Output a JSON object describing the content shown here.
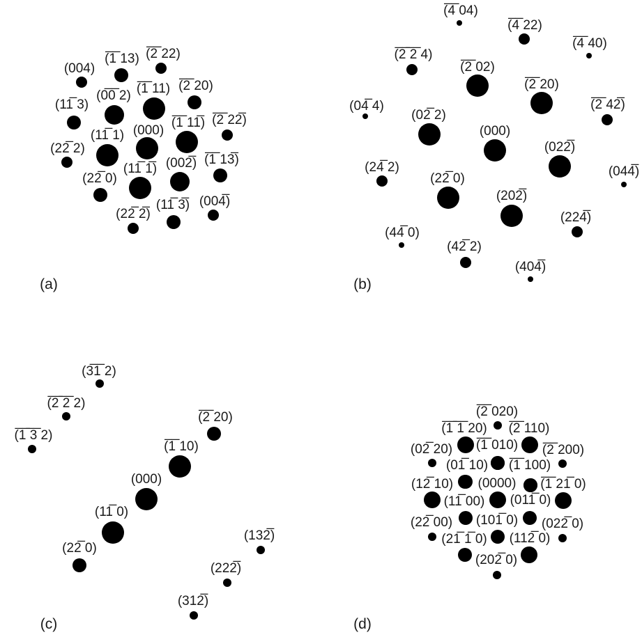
{
  "panels": [
    {
      "id": "a",
      "label": "(a)",
      "spots": [
        {
          "name": "004",
          "text": "(004)"
        },
        {
          "name": "-113",
          "text": "(̅1̅ 13)"
        },
        {
          "name": "-222",
          "text": "(̅2̅ 22)"
        },
        {
          "name": "-002",
          "text": "(0̅0̅ 2)"
        },
        {
          "name": "-111",
          "text": "(̅1̅ 11)"
        },
        {
          "name": "-220",
          "text": "(̅2̅ 20)"
        },
        {
          "name": "1-13",
          "text": "(11̅ 3)"
        },
        {
          "name": "000",
          "text": "(000)"
        },
        {
          "name": "-11-1",
          "text": "(̅1̅ 11̅)"
        },
        {
          "name": "-22-2",
          "text": "(̅2̅ 22̅)"
        },
        {
          "name": "1-11",
          "text": "(11̅ 1)"
        },
        {
          "name": "2-22",
          "text": "(22̅ 2)"
        },
        {
          "name": "1-1-1",
          "text": "(11̅ 1̅)"
        },
        {
          "name": "00-2",
          "text": "(002̅)"
        },
        {
          "name": "-11-3",
          "text": "(̅1̅ 13̅)"
        },
        {
          "name": "2-20",
          "text": "(22̅ 0)"
        },
        {
          "name": "2-2-2",
          "text": "(22̅ 2̅)"
        },
        {
          "name": "1-1-3",
          "text": "(11̅ 3̅)"
        },
        {
          "name": "00-4",
          "text": "(004̅)"
        }
      ]
    },
    {
      "id": "b",
      "label": "(b)",
      "spots": [
        {
          "name": "-404",
          "text": "(̅4̅ 04)"
        },
        {
          "name": "-422",
          "text": "(̅4̅ 22)"
        },
        {
          "name": "-440",
          "text": "(̅4̅ 40)"
        },
        {
          "name": "-2-24",
          "text": "(̅2̅ ̅2̅ 4)"
        },
        {
          "name": "-202",
          "text": "(̅2̅ 02)"
        },
        {
          "name": "-220",
          "text": "(̅2̅ 20)"
        },
        {
          "name": "0-44",
          "text": "(04̅ 4)"
        },
        {
          "name": "0-22",
          "text": "(02̅ 2)"
        },
        {
          "name": "-24-2",
          "text": "(̅2̅ 42̅)"
        },
        {
          "name": "000",
          "text": "(000)"
        },
        {
          "name": "02-2",
          "text": "(022̅)"
        },
        {
          "name": "2-42",
          "text": "(24̅ 2)"
        },
        {
          "name": "04-4",
          "text": "(044̅)"
        },
        {
          "name": "2-20",
          "text": "(22̅ 0)"
        },
        {
          "name": "20-2",
          "text": "(202̅)"
        },
        {
          "name": "22-4",
          "text": "(224̅)"
        },
        {
          "name": "4-40",
          "text": "(44̅ 0)"
        },
        {
          "name": "4-22",
          "text": "(42̅ 2)"
        },
        {
          "name": "40-4",
          "text": "(404̅)"
        }
      ]
    },
    {
      "id": "c",
      "label": "(c)",
      "spots": [
        {
          "name": "3-12",
          "text": "(3̅1̅ 2)"
        },
        {
          "name": "-222",
          "text": "(̅2̅ ̅2̅ 2)"
        },
        {
          "name": "-1-32",
          "text": "(̅1̅ ̅3̅ 2)"
        },
        {
          "name": "-220",
          "text": "(̅2̅ 20)"
        },
        {
          "name": "-110",
          "text": "(̅1̅ 10)"
        },
        {
          "name": "000",
          "text": "(000)"
        },
        {
          "name": "1-10",
          "text": "(11̅ 0)"
        },
        {
          "name": "2-20",
          "text": "(22̅ 0)"
        },
        {
          "name": "13-2",
          "text": "(132̅)"
        },
        {
          "name": "22-2",
          "text": "(222̅)"
        },
        {
          "name": "31-2",
          "text": "(312̅)"
        }
      ]
    },
    {
      "id": "d",
      "label": "(d)",
      "spots": [
        {
          "name": "-2020",
          "text": "(̅2̅ 020)"
        },
        {
          "name": "-1-120",
          "text": "(̅1̅ ̅1̅ 20)"
        },
        {
          "name": "-2110",
          "text": "(̅2̅ 110)"
        },
        {
          "name": "0-220",
          "text": "(02̅ 20)"
        },
        {
          "name": "-1010",
          "text": "(̅1̅ 010)"
        },
        {
          "name": "-2200",
          "text": "(̅2̅ 200)"
        },
        {
          "name": "0-110",
          "text": "(01̅ 10)"
        },
        {
          "name": "-1100",
          "text": "(̅1̅ 100)"
        },
        {
          "name": "1-210",
          "text": "(12̅ 10)"
        },
        {
          "name": "0000",
          "text": "(0000)"
        },
        {
          "name": "-12-10",
          "text": "(̅1̅ 21̅ 0)"
        },
        {
          "name": "1-100",
          "text": "(11̅ 00)"
        },
        {
          "name": "01-10",
          "text": "(011̅ 0)"
        },
        {
          "name": "2-200",
          "text": "(22̅ 00)"
        },
        {
          "name": "10-10",
          "text": "(101̅ 0)"
        },
        {
          "name": "02-20",
          "text": "(022̅ 0)"
        },
        {
          "name": "2-1-10",
          "text": "(21̅ 1̅ 0)"
        },
        {
          "name": "11-20",
          "text": "(112̅ 0)"
        },
        {
          "name": "20-20",
          "text": "(202̅ 0)"
        }
      ]
    }
  ]
}
